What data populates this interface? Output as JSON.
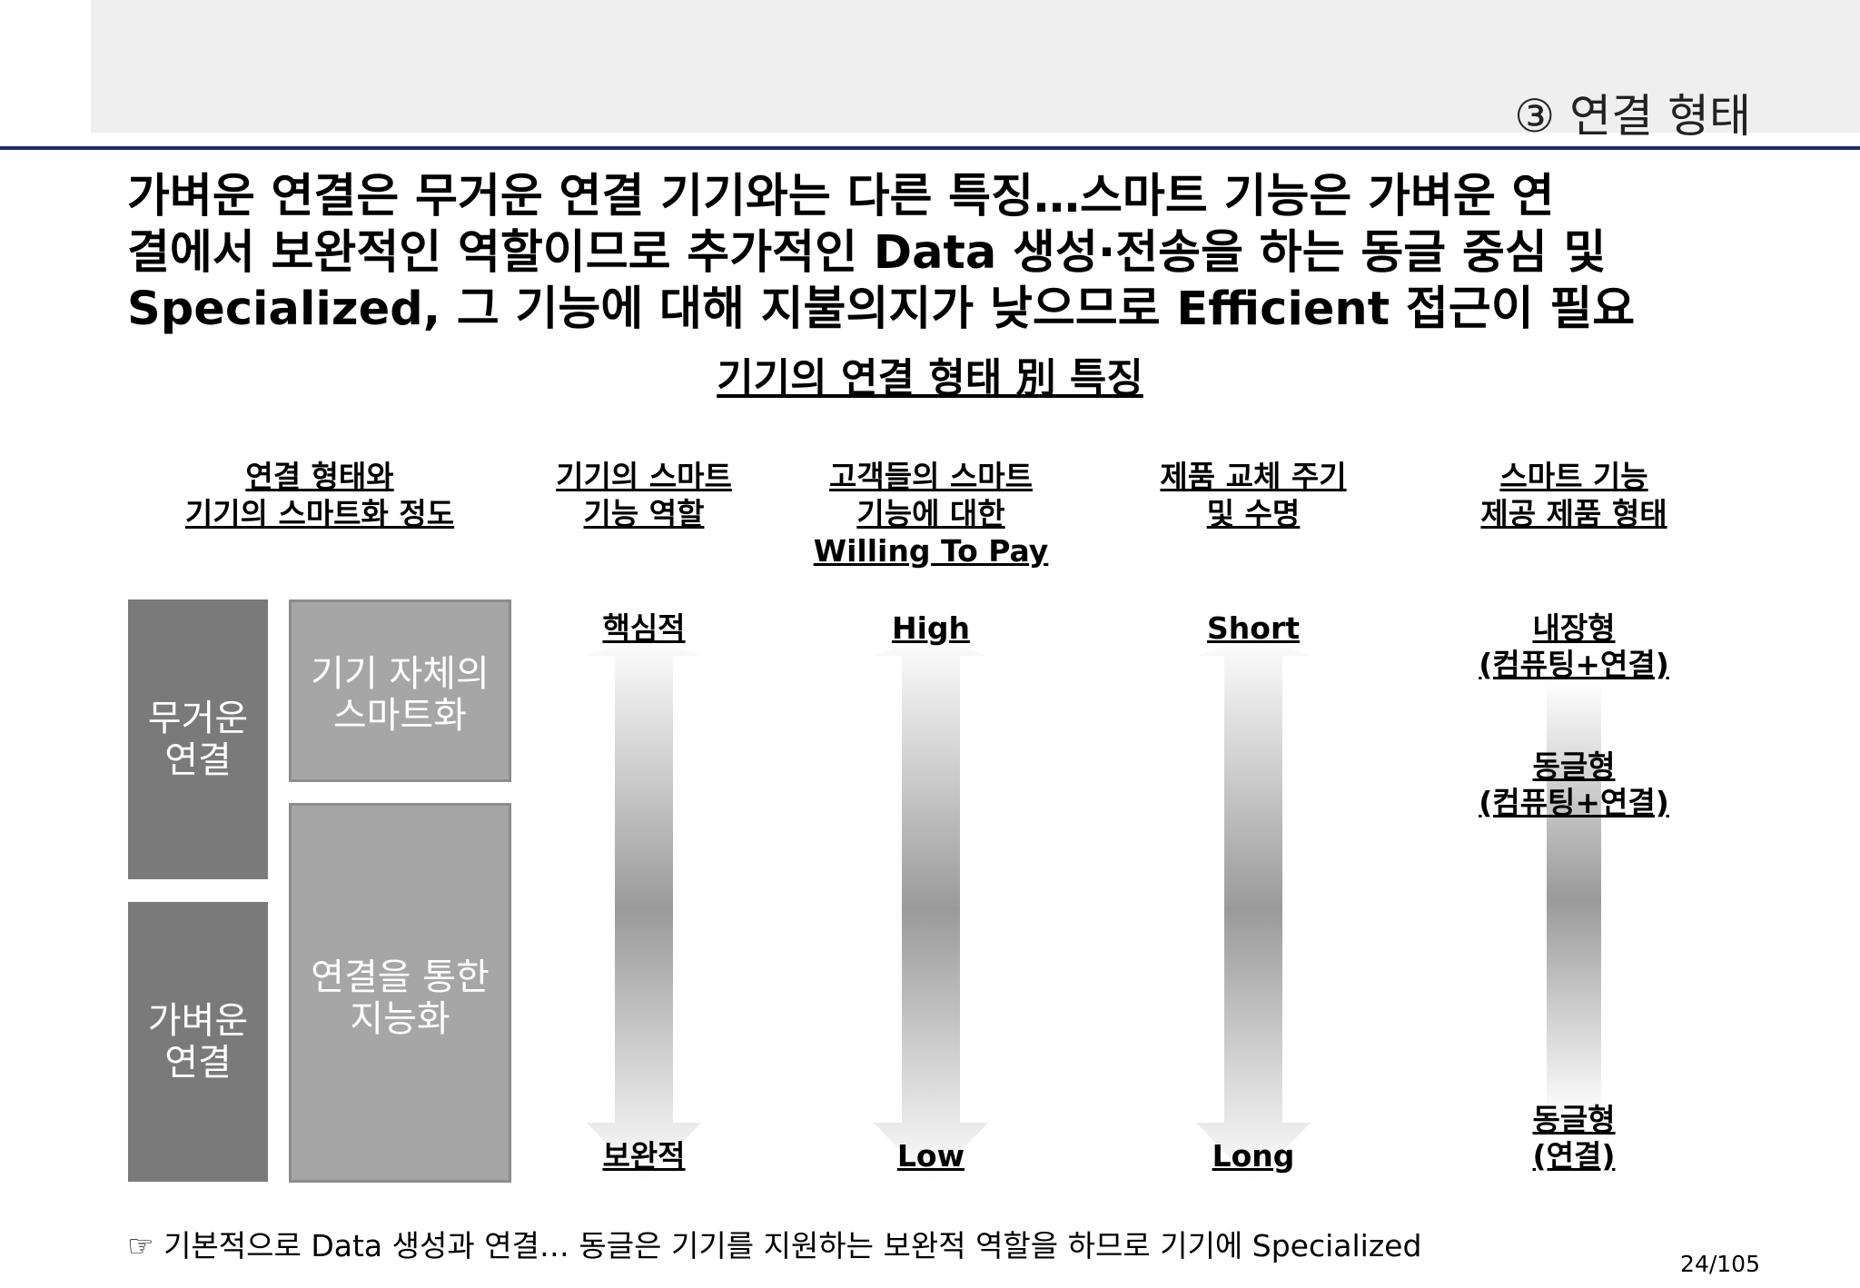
{
  "header": {
    "section_label": "③ 연결 형태"
  },
  "headline": {
    "lines": [
      "가벼운 연결은 무거운 연결 기기와는 다른 특징…스마트 기능은 가벼운 연",
      "결에서 보완적인 역할이므로 추가적인 Data 생성·전송을 하는 동글 중심 및",
      "Specialized, 그 기능에 대해 지불의지가 낮으므로 Efficient 접근이 필요"
    ]
  },
  "chart_title": "기기의 연결 형태 別 특징",
  "columns": [
    {
      "lines": [
        "연결 형태와",
        "기기의 스마트화 정도"
      ]
    },
    {
      "lines": [
        "기기의 스마트",
        "기능 역할"
      ]
    },
    {
      "lines": [
        "고객들의 스마트",
        "기능에 대한",
        "Willing To Pay"
      ]
    },
    {
      "lines": [
        "제품 교체 주기",
        "및 수명"
      ]
    },
    {
      "lines": [
        "스마트 기능",
        "제공 제품 형태"
      ]
    }
  ],
  "boxes": {
    "heavy": [
      "무거운",
      "연결"
    ],
    "light": [
      "가벼운",
      "연결"
    ],
    "self_smart": [
      "기기 자체의",
      "스마트화"
    ],
    "connected_smart": [
      "연결을 통한",
      "지능화"
    ]
  },
  "arrows": {
    "role": {
      "top": "핵심적",
      "bottom": "보완적"
    },
    "wtp": {
      "top": "High",
      "bottom": "Low"
    },
    "cycle": {
      "top": "Short",
      "bottom": "Long"
    },
    "form": {
      "top": [
        "내장형",
        "(컴퓨팅+연결)"
      ],
      "middle": [
        "동글형",
        "(컴퓨팅+연결)"
      ],
      "bottom": [
        "동글형",
        "(연결)"
      ]
    }
  },
  "footnote": "☞ 기본적으로 Data 생성과 연결… 동글은 기기를 지원하는 보완적 역할을 하므로 기기에 Specialized",
  "page_number": "24/105",
  "colors": {
    "rule": "#1e2a6e",
    "box_dark": "#7a7a7a",
    "box_light": "#a6a6a6"
  }
}
